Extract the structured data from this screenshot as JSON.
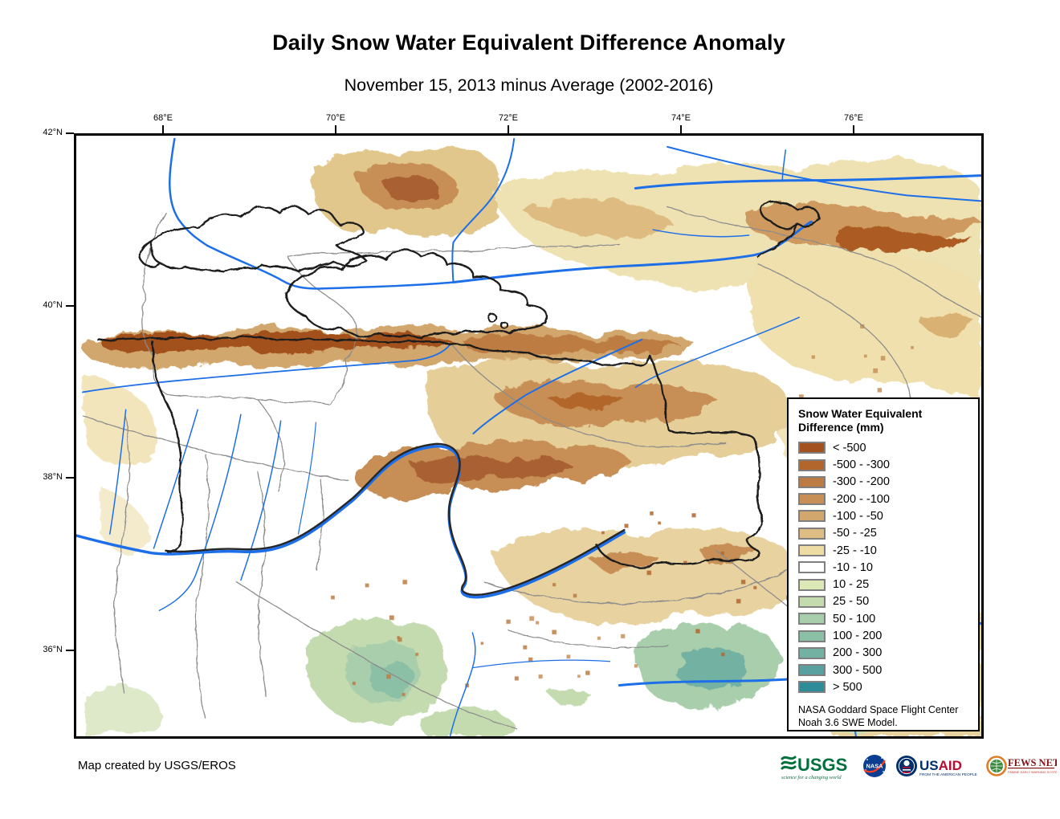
{
  "title": "Daily Snow Water Equivalent Difference Anomaly",
  "subtitle": "November 15, 2013 minus Average (2002-2016)",
  "map": {
    "lon_ticks": [
      "68°E",
      "70°E",
      "72°E",
      "74°E",
      "76°E"
    ],
    "lat_ticks": [
      "42°N",
      "40°N",
      "38°N",
      "36°N"
    ]
  },
  "legend": {
    "title_line1": "Snow Water Equivalent",
    "title_line2": "Difference (mm)",
    "entries": [
      {
        "label": "< -500",
        "color": "#A3511E"
      },
      {
        "label": "-500 - -300",
        "color": "#B2662B"
      },
      {
        "label": "-300 - -200",
        "color": "#BC7B42"
      },
      {
        "label": "-200 - -100",
        "color": "#C78F55"
      },
      {
        "label": "-100 - -50",
        "color": "#D2A76D"
      },
      {
        "label": "-50 - -25",
        "color": "#DFBE85"
      },
      {
        "label": "-25 - -10",
        "color": "#EDDCA4"
      },
      {
        "label": "-10 - 10",
        "color": "#FFFFFF"
      },
      {
        "label": "10 - 25",
        "color": "#DCE8B6"
      },
      {
        "label": "25 - 50",
        "color": "#C4DBB0"
      },
      {
        "label": "50 - 100",
        "color": "#A9CEAC"
      },
      {
        "label": "100 - 200",
        "color": "#8BBFA6"
      },
      {
        "label": "200 - 300",
        "color": "#73B1A3"
      },
      {
        "label": "300 - 500",
        "color": "#58A1A0"
      },
      {
        "label": "> 500",
        "color": "#2E8C99"
      }
    ],
    "source_line1": "NASA Goddard Space Flight Center",
    "source_line2": "Noah 3.6 SWE Model."
  },
  "footer": {
    "credit": "Map created by USGS/EROS"
  },
  "logos": {
    "usgs": {
      "name": "USGS",
      "tagline": "science for a changing world"
    },
    "nasa": {
      "name": "NASA"
    },
    "usaid": {
      "us": "US",
      "aid": "AID",
      "tagline": "FROM THE AMERICAN PEOPLE"
    },
    "fewsnet": {
      "name": "FEWS NET",
      "tagline": "FAMINE EARLY WARNING SYSTEMS NETWORK"
    }
  }
}
